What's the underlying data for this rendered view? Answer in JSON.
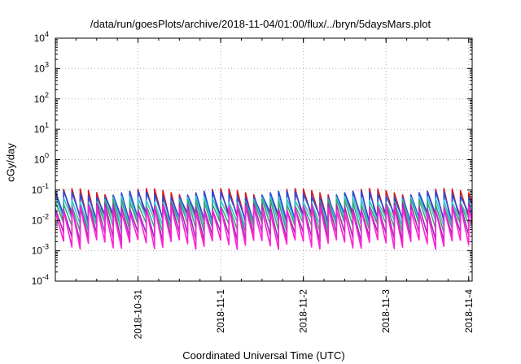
{
  "chart_data": {
    "type": "line",
    "title": "/data/run/goesPlots/archive/2018-11-04/01:00/flux/../bryn/5daysMars.plot",
    "xlabel": "Coordinated Universal Time (UTC)",
    "ylabel": "cGy/day",
    "yscale": "log",
    "ylim": [
      0.0001,
      10000
    ],
    "y_ticks": [
      {
        "mant": "10",
        "exp": "-4"
      },
      {
        "mant": "10",
        "exp": "-3"
      },
      {
        "mant": "10",
        "exp": "-2"
      },
      {
        "mant": "10",
        "exp": "-1"
      },
      {
        "mant": "10",
        "exp": "0"
      },
      {
        "mant": "10",
        "exp": "1"
      },
      {
        "mant": "10",
        "exp": "2"
      },
      {
        "mant": "10",
        "exp": "3"
      },
      {
        "mant": "10",
        "exp": "4"
      }
    ],
    "xlim": [
      "2018-10-30 00:00",
      "2018-11-04 01:00"
    ],
    "x_ticks": [
      "2018-10-31",
      "2018-11-1",
      "2018-11-2",
      "2018-11-3",
      "2018-11-4"
    ],
    "grid": true,
    "legend": "none",
    "cycles_per_day": 10,
    "series": [
      {
        "color": "#d7191c",
        "peak": 0.09,
        "trough": 0.01
      },
      {
        "color": "#2b4bd8",
        "peak": 0.075,
        "trough": 0.013
      },
      {
        "color": "#30c8d8",
        "peak": 0.05,
        "trough": 0.009
      },
      {
        "color": "#3aa87a",
        "peak": 0.04,
        "trough": 0.006
      },
      {
        "color": "#9b2fb0",
        "peak": 0.03,
        "trough": 0.003
      },
      {
        "color": "#ff1fd6",
        "peak": 0.025,
        "trough": 0.0017
      }
    ]
  }
}
